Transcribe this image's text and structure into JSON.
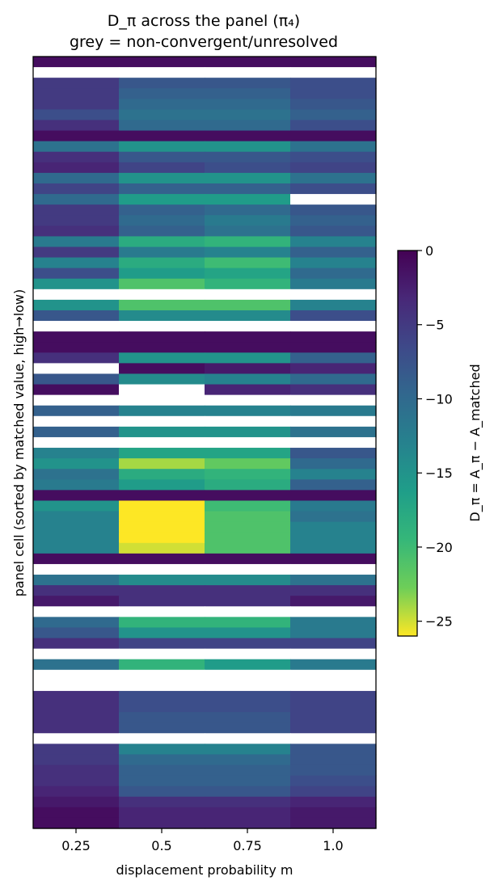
{
  "chart_data": {
    "type": "heatmap",
    "title": "D_π across the panel (π₄)",
    "subtitle": "grey = non-convergent/unresolved",
    "xlabel": "displacement probability m",
    "ylabel": "panel cell (sorted by matched value, high→low)",
    "x_categories": [
      "0.25",
      "0.5",
      "0.75",
      "1.0"
    ],
    "colorbar": {
      "label": "D_π = A_π − A_matched",
      "colormap": "viridis (reversed: 0 = dark purple, −26 = yellow)",
      "range": [
        -26,
        0
      ],
      "ticks": [
        "0",
        "−5",
        "−10",
        "−15",
        "−20",
        "−25"
      ],
      "tick_values": [
        0,
        -5,
        -10,
        -15,
        -20,
        -25
      ]
    },
    "missing_color": "#ffffff",
    "rows": [
      [
        -1,
        -1,
        -1,
        -1
      ],
      [
        null,
        null,
        null,
        null
      ],
      [
        -5,
        -8,
        -8,
        -7
      ],
      [
        -5,
        -9,
        -9,
        -7
      ],
      [
        -5,
        -10,
        -10,
        -8
      ],
      [
        -7,
        -11,
        -11,
        -9
      ],
      [
        -4,
        -10,
        -10,
        -7
      ],
      [
        -1,
        -1,
        -1,
        -1
      ],
      [
        -11,
        -15,
        -15,
        -11
      ],
      [
        -4,
        -8,
        -8,
        -7
      ],
      [
        -3,
        -6,
        -7,
        -6
      ],
      [
        -10,
        -15,
        -15,
        -11
      ],
      [
        -6,
        -9,
        -9,
        -7
      ],
      [
        -10,
        -16,
        -16,
        null
      ],
      [
        -5,
        -9,
        -10,
        -8
      ],
      [
        -5,
        -10,
        -12,
        -9
      ],
      [
        -4,
        -9,
        -11,
        -8
      ],
      [
        -12,
        -18,
        -19,
        -13
      ],
      [
        -5,
        -12,
        -13,
        -9
      ],
      [
        -13,
        -18,
        -20,
        -13
      ],
      [
        -7,
        -16,
        -17,
        -10
      ],
      [
        -15,
        -21,
        -19,
        -12
      ],
      [
        null,
        null,
        null,
        null
      ],
      [
        -15,
        -21,
        -21,
        -13
      ],
      [
        -8,
        -14,
        -14,
        -7
      ],
      [
        null,
        null,
        null,
        null
      ],
      [
        -1,
        -1,
        -1,
        -1
      ],
      [
        -1,
        -1,
        -1,
        -1
      ],
      [
        -4,
        -15,
        -15,
        -9
      ],
      [
        null,
        -1,
        -2,
        -3
      ],
      [
        -8,
        -14,
        -13,
        -10
      ],
      [
        -1,
        null,
        -3,
        -4
      ],
      [
        null,
        null,
        null,
        null
      ],
      [
        -9,
        -13,
        -13,
        -12
      ],
      [
        null,
        null,
        null,
        null
      ],
      [
        -9,
        -15,
        -15,
        -11
      ],
      [
        null,
        null,
        null,
        null
      ],
      [
        -13,
        -17,
        -17,
        -8
      ],
      [
        -15,
        -24,
        -22,
        -10
      ],
      [
        -11,
        -18,
        -19,
        -13
      ],
      [
        -12,
        -16,
        -18,
        -9
      ],
      [
        -1,
        -1,
        -1,
        -1
      ],
      [
        -15,
        -26,
        -20,
        -12
      ],
      [
        -13,
        -26,
        -21,
        -11
      ],
      [
        -13,
        -26,
        -21,
        -13
      ],
      [
        -13,
        -26,
        -21,
        -13
      ],
      [
        -13,
        -25,
        -21,
        -13
      ],
      [
        -1,
        -1,
        -1,
        -1
      ],
      [
        null,
        null,
        null,
        null
      ],
      [
        -11,
        -14,
        -14,
        -11
      ],
      [
        -4,
        -4,
        -4,
        -4
      ],
      [
        -2,
        -4,
        -4,
        -2
      ],
      [
        null,
        null,
        null,
        null
      ],
      [
        -10,
        -19,
        -19,
        -12
      ],
      [
        -8,
        -15,
        -15,
        -12
      ],
      [
        -4,
        -6,
        -6,
        -6
      ],
      [
        null,
        null,
        null,
        null
      ],
      [
        -11,
        -19,
        -16,
        -12
      ],
      [
        null,
        null,
        null,
        null
      ],
      [
        null,
        null,
        null,
        null
      ],
      [
        -4,
        -7,
        -7,
        -6
      ],
      [
        -4,
        -7,
        -7,
        -6
      ],
      [
        -4,
        -8,
        -8,
        -6
      ],
      [
        -4,
        -8,
        -8,
        -6
      ],
      [
        null,
        null,
        null,
        null
      ],
      [
        -5,
        -13,
        -13,
        -8
      ],
      [
        -5,
        -10,
        -10,
        -8
      ],
      [
        -4,
        -9,
        -9,
        -8
      ],
      [
        -4,
        -9,
        -9,
        -7
      ],
      [
        -3,
        -8,
        -8,
        -6
      ],
      [
        -2,
        -4,
        -4,
        -3
      ],
      [
        -1,
        -3,
        -3,
        -2
      ],
      [
        -1,
        -3,
        -3,
        -2
      ]
    ]
  }
}
